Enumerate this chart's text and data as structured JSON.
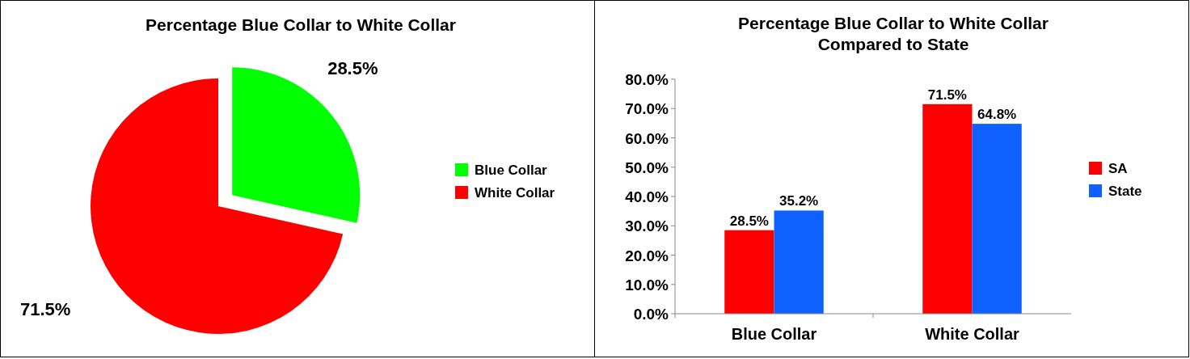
{
  "chart_data": [
    {
      "type": "pie",
      "title": "Percentage Blue Collar to White Collar",
      "categories": [
        "Blue Collar",
        "White Collar"
      ],
      "values": [
        28.5,
        71.5
      ],
      "colors": [
        "#00ff00",
        "#ff0000"
      ],
      "value_labels": [
        "28.5%",
        "71.5%"
      ],
      "legend": "right"
    },
    {
      "type": "bar",
      "title": "Percentage Blue Collar to White Collar Compared to State",
      "categories": [
        "Blue Collar",
        "White Collar"
      ],
      "series": [
        {
          "name": "SA",
          "color": "#ff0000",
          "values": [
            28.5,
            71.5
          ],
          "value_labels": [
            "28.5%",
            "71.5%"
          ]
        },
        {
          "name": "State",
          "color": "#1060ff",
          "values": [
            35.2,
            64.8
          ],
          "value_labels": [
            "35.2%",
            "64.8%"
          ]
        }
      ],
      "ylim": [
        0,
        80
      ],
      "yticks": [
        {
          "value": 0,
          "label": "0.0%"
        },
        {
          "value": 10,
          "label": "10.0%"
        },
        {
          "value": 20,
          "label": "20.0%"
        },
        {
          "value": 30,
          "label": "30.0%"
        },
        {
          "value": 40,
          "label": "40.0%"
        },
        {
          "value": 50,
          "label": "50.0%"
        },
        {
          "value": 60,
          "label": "60.0%"
        },
        {
          "value": 70,
          "label": "70.0%"
        },
        {
          "value": 80,
          "label": "80.0%"
        }
      ],
      "grid": false,
      "legend": "right"
    }
  ]
}
